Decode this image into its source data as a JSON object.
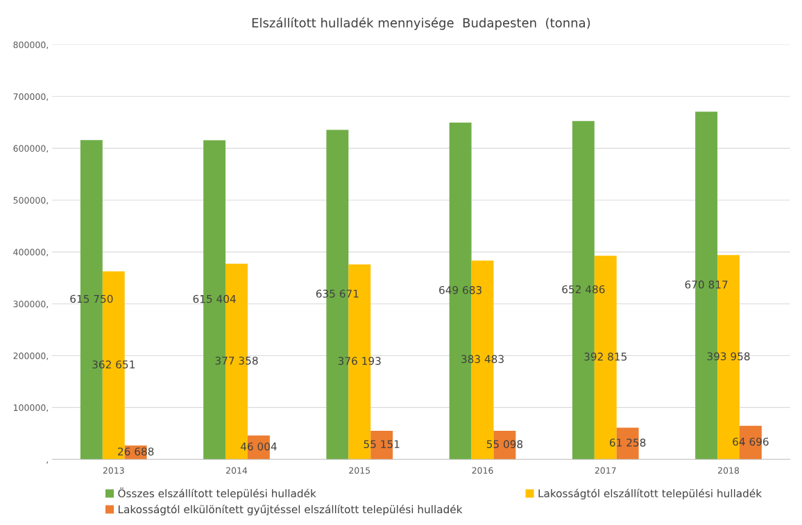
{
  "chart_data": {
    "type": "bar",
    "title": "Elszállított hulladék mennyisége  Budapesten  (tonna)",
    "categories": [
      "2013",
      "2014",
      "2015",
      "2016",
      "2017",
      "2018"
    ],
    "series": [
      {
        "name": "Összes elszállított települési hulladék",
        "color": "#70ad47",
        "values": [
          615750,
          615404,
          635671,
          649683,
          652486,
          670817
        ],
        "value_labels": [
          "615 750",
          "615 404",
          "635 671",
          "649 683",
          "652 486",
          "670 817"
        ]
      },
      {
        "name": "Lakosságtól elszállított települési hulladék",
        "color": "#ffc000",
        "values": [
          362651,
          377358,
          376193,
          383483,
          392815,
          393958
        ],
        "value_labels": [
          "362 651",
          "377 358",
          "376 193",
          "383 483",
          "392 815",
          "393 958"
        ]
      },
      {
        "name": "Lakosságtól elkülönített gyűjtéssel elszállított települési hulladék",
        "color": "#ed7d31",
        "values": [
          26688,
          46004,
          55151,
          55098,
          61258,
          64696
        ],
        "value_labels": [
          "26 688",
          "46 004",
          "55 151",
          "55 098",
          "61 258",
          "64 696"
        ]
      }
    ],
    "ylim": [
      0,
      800000
    ],
    "yticks": [
      {
        "value": 0,
        "label": ","
      },
      {
        "value": 100000,
        "label": "100000,"
      },
      {
        "value": 200000,
        "label": "200000,"
      },
      {
        "value": 300000,
        "label": "300000,"
      },
      {
        "value": 400000,
        "label": "400000,"
      },
      {
        "value": 500000,
        "label": "500000,"
      },
      {
        "value": 600000,
        "label": "600000,"
      },
      {
        "value": 700000,
        "label": "700000,"
      },
      {
        "value": 800000,
        "label": "800000,"
      }
    ],
    "grid": "y",
    "legend": "bottom"
  }
}
